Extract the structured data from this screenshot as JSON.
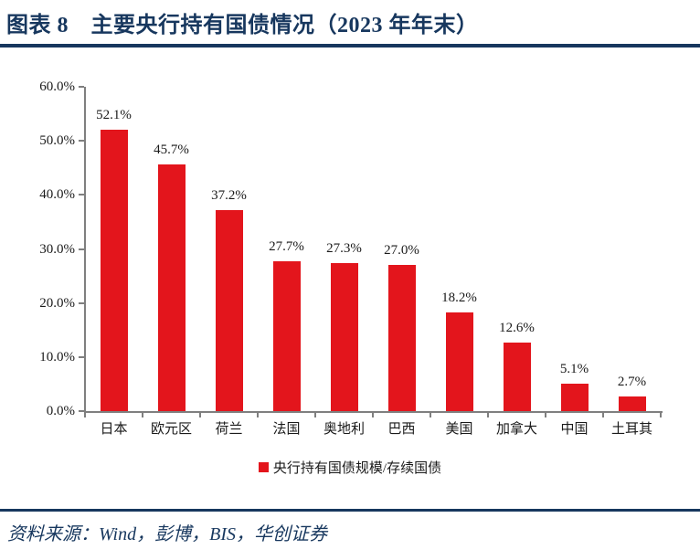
{
  "header": {
    "title": "图表 8　主要央行持有国债情况（2023 年年末）"
  },
  "chart_data": {
    "type": "bar",
    "title": "主要央行持有国债情况（2023 年年末）",
    "categories": [
      "日本",
      "欧元区",
      "荷兰",
      "法国",
      "奥地利",
      "巴西",
      "美国",
      "加拿大",
      "中国",
      "土耳其"
    ],
    "values": [
      52.1,
      45.7,
      37.2,
      27.7,
      27.3,
      27.0,
      18.2,
      12.6,
      5.1,
      2.7
    ],
    "data_labels": [
      "52.1%",
      "45.7%",
      "37.2%",
      "27.7%",
      "27.3%",
      "27.0%",
      "18.2%",
      "12.6%",
      "5.1%",
      "2.7%"
    ],
    "xlabel": "",
    "ylabel": "",
    "ylim": [
      0,
      60
    ],
    "ytick_labels": [
      "0.0%",
      "10.0%",
      "20.0%",
      "30.0%",
      "40.0%",
      "50.0%",
      "60.0%"
    ],
    "grid": false,
    "legend_label": "央行持有国债规模/存续国债",
    "legend_position": "bottom-center",
    "bar_color": "#E3151C"
  },
  "footer": {
    "source": "资料来源：Wind，彭博，BIS，华创证券"
  },
  "colors": {
    "navy": "#17375E",
    "bar_red": "#E3151C",
    "axis_gray": "#7F7F7F",
    "text_black": "#1A1A1A"
  }
}
